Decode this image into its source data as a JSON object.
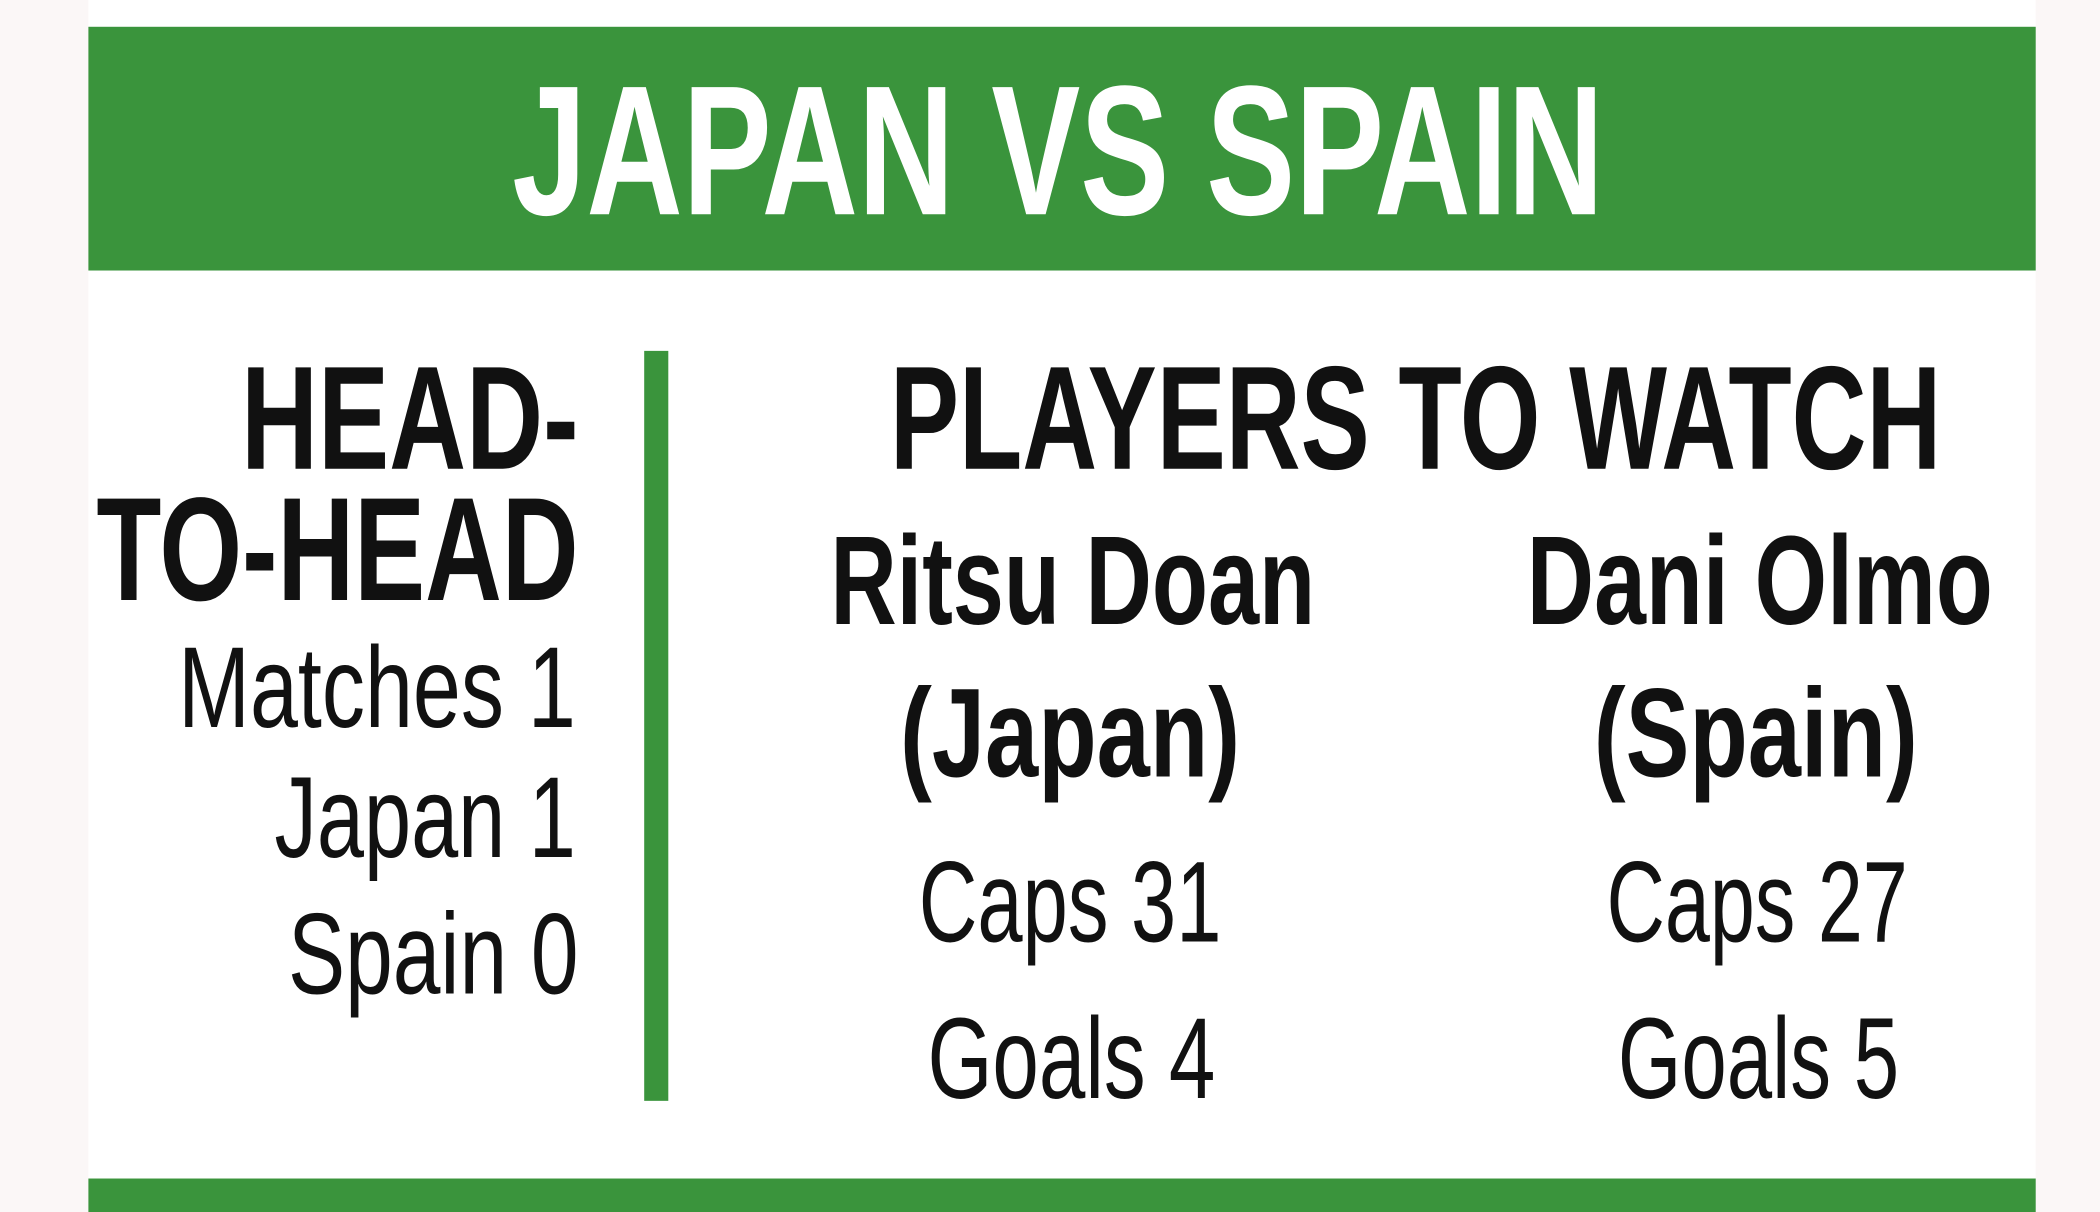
{
  "header": {
    "title": "JAPAN VS SPAIN"
  },
  "head_to_head": {
    "title_lines": [
      "HEAD-",
      "TO-HEAD"
    ],
    "stats": [
      "Matches 1",
      "Japan 1",
      "Spain 0"
    ]
  },
  "players_to_watch": {
    "title": "PLAYERS TO WATCH",
    "players": [
      {
        "name": "Ritsu Doan",
        "team": "(Japan)",
        "stats": [
          "Caps 31",
          "Goals 4"
        ]
      },
      {
        "name": "Dani Olmo",
        "team": "(Spain)",
        "stats": [
          "Caps 27",
          "Goals 5"
        ]
      }
    ]
  }
}
